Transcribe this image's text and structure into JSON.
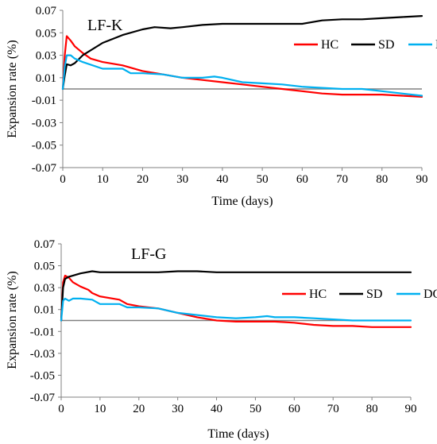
{
  "chart_data": [
    {
      "type": "line",
      "title": "LF-K",
      "xlabel": "Time (days)",
      "ylabel": "Expansion rate (%)",
      "xlim": [
        0,
        90
      ],
      "ylim": [
        -0.07,
        0.07
      ],
      "xticks": [
        0,
        10,
        20,
        30,
        40,
        50,
        60,
        70,
        80,
        90
      ],
      "yticks": [
        -0.07,
        -0.05,
        -0.03,
        -0.01,
        0.01,
        0.03,
        0.05,
        0.07
      ],
      "xtick_labels": [
        "0",
        "10",
        "20",
        "30",
        "40",
        "50",
        "60",
        "70",
        "80",
        "90"
      ],
      "ytick_labels": [
        "-0.07",
        "-0.05",
        "-0.03",
        "-0.01",
        "0.01",
        "0.03",
        "0.05",
        "0.07"
      ],
      "grid": false,
      "legend_position": "top-right",
      "reference_line": {
        "y": 0,
        "color": "#808080"
      },
      "series": [
        {
          "name": "HC",
          "color": "#ff0000",
          "points": [
            [
              0,
              0.0
            ],
            [
              0.5,
              0.03
            ],
            [
              1,
              0.047
            ],
            [
              2,
              0.043
            ],
            [
              3,
              0.038
            ],
            [
              5,
              0.032
            ],
            [
              7,
              0.027
            ],
            [
              10,
              0.024
            ],
            [
              15,
              0.021
            ],
            [
              20,
              0.016
            ],
            [
              25,
              0.013
            ],
            [
              30,
              0.01
            ],
            [
              35,
              0.008
            ],
            [
              40,
              0.006
            ],
            [
              45,
              0.004
            ],
            [
              50,
              0.002
            ],
            [
              55,
              0.0
            ],
            [
              60,
              -0.002
            ],
            [
              65,
              -0.004
            ],
            [
              70,
              -0.005
            ],
            [
              75,
              -0.005
            ],
            [
              80,
              -0.005
            ],
            [
              85,
              -0.006
            ],
            [
              90,
              -0.007
            ]
          ]
        },
        {
          "name": "SD",
          "color": "#000000",
          "points": [
            [
              0,
              0.0
            ],
            [
              0.5,
              0.012
            ],
            [
              1,
              0.022
            ],
            [
              2,
              0.021
            ],
            [
              3,
              0.023
            ],
            [
              5,
              0.03
            ],
            [
              10,
              0.041
            ],
            [
              15,
              0.048
            ],
            [
              20,
              0.053
            ],
            [
              23,
              0.055
            ],
            [
              27,
              0.054
            ],
            [
              30,
              0.055
            ],
            [
              35,
              0.057
            ],
            [
              40,
              0.058
            ],
            [
              45,
              0.058
            ],
            [
              50,
              0.058
            ],
            [
              55,
              0.058
            ],
            [
              60,
              0.058
            ],
            [
              65,
              0.061
            ],
            [
              70,
              0.062
            ],
            [
              75,
              0.062
            ],
            [
              80,
              0.063
            ],
            [
              85,
              0.064
            ],
            [
              90,
              0.065
            ]
          ]
        },
        {
          "name": "DC",
          "color": "#00b0f0",
          "points": [
            [
              0,
              0.0
            ],
            [
              0.5,
              0.02
            ],
            [
              1,
              0.03
            ],
            [
              2,
              0.03
            ],
            [
              3,
              0.027
            ],
            [
              5,
              0.024
            ],
            [
              10,
              0.018
            ],
            [
              15,
              0.018
            ],
            [
              17,
              0.014
            ],
            [
              20,
              0.014
            ],
            [
              25,
              0.013
            ],
            [
              30,
              0.01
            ],
            [
              35,
              0.01
            ],
            [
              38,
              0.011
            ],
            [
              40,
              0.01
            ],
            [
              45,
              0.006
            ],
            [
              50,
              0.005
            ],
            [
              55,
              0.004
            ],
            [
              60,
              0.002
            ],
            [
              65,
              0.001
            ],
            [
              70,
              0.0
            ],
            [
              75,
              0.0
            ],
            [
              80,
              -0.002
            ],
            [
              85,
              -0.004
            ],
            [
              90,
              -0.006
            ]
          ]
        }
      ]
    },
    {
      "type": "line",
      "title": "LF-G",
      "xlabel": "Time (days)",
      "ylabel": "Expansion rate (%)",
      "xlim": [
        0,
        90
      ],
      "ylim": [
        -0.07,
        0.07
      ],
      "xticks": [
        0,
        10,
        20,
        30,
        40,
        50,
        60,
        70,
        80,
        90
      ],
      "yticks": [
        -0.07,
        -0.05,
        -0.03,
        -0.01,
        0.01,
        0.03,
        0.05,
        0.07
      ],
      "xtick_labels": [
        "0",
        "10",
        "20",
        "30",
        "40",
        "50",
        "60",
        "70",
        "80",
        "90"
      ],
      "ytick_labels": [
        "-0.07",
        "-0.05",
        "-0.03",
        "-0.01",
        "0.01",
        "0.03",
        "0.05",
        "0.07"
      ],
      "grid": false,
      "legend_position": "top-right",
      "reference_line": {
        "y": 0,
        "color": "#808080"
      },
      "series": [
        {
          "name": "HC",
          "color": "#ff0000",
          "points": [
            [
              0,
              0.0
            ],
            [
              0.5,
              0.035
            ],
            [
              1,
              0.041
            ],
            [
              2,
              0.039
            ],
            [
              3,
              0.035
            ],
            [
              5,
              0.031
            ],
            [
              7,
              0.028
            ],
            [
              8,
              0.025
            ],
            [
              10,
              0.022
            ],
            [
              15,
              0.019
            ],
            [
              17,
              0.015
            ],
            [
              20,
              0.013
            ],
            [
              25,
              0.011
            ],
            [
              30,
              0.007
            ],
            [
              35,
              0.003
            ],
            [
              40,
              0.0
            ],
            [
              45,
              -0.001
            ],
            [
              50,
              -0.001
            ],
            [
              55,
              -0.001
            ],
            [
              60,
              -0.002
            ],
            [
              65,
              -0.004
            ],
            [
              70,
              -0.005
            ],
            [
              75,
              -0.005
            ],
            [
              80,
              -0.006
            ],
            [
              85,
              -0.006
            ],
            [
              90,
              -0.006
            ]
          ]
        },
        {
          "name": "SD",
          "color": "#000000",
          "points": [
            [
              0,
              0.0
            ],
            [
              0.5,
              0.03
            ],
            [
              1,
              0.038
            ],
            [
              2,
              0.04
            ],
            [
              5,
              0.043
            ],
            [
              8,
              0.045
            ],
            [
              10,
              0.044
            ],
            [
              15,
              0.044
            ],
            [
              20,
              0.044
            ],
            [
              25,
              0.044
            ],
            [
              30,
              0.045
            ],
            [
              35,
              0.045
            ],
            [
              40,
              0.044
            ],
            [
              45,
              0.044
            ],
            [
              50,
              0.044
            ],
            [
              55,
              0.044
            ],
            [
              60,
              0.044
            ],
            [
              65,
              0.044
            ],
            [
              70,
              0.044
            ],
            [
              75,
              0.044
            ],
            [
              80,
              0.044
            ],
            [
              85,
              0.044
            ],
            [
              90,
              0.044
            ]
          ]
        },
        {
          "name": "DC",
          "color": "#00b0f0",
          "points": [
            [
              0,
              0.0
            ],
            [
              0.5,
              0.018
            ],
            [
              1,
              0.02
            ],
            [
              2,
              0.018
            ],
            [
              3,
              0.02
            ],
            [
              5,
              0.02
            ],
            [
              8,
              0.019
            ],
            [
              10,
              0.015
            ],
            [
              15,
              0.015
            ],
            [
              17,
              0.012
            ],
            [
              20,
              0.012
            ],
            [
              25,
              0.011
            ],
            [
              30,
              0.007
            ],
            [
              35,
              0.005
            ],
            [
              40,
              0.003
            ],
            [
              45,
              0.002
            ],
            [
              50,
              0.003
            ],
            [
              53,
              0.004
            ],
            [
              55,
              0.003
            ],
            [
              60,
              0.003
            ],
            [
              65,
              0.002
            ],
            [
              70,
              0.001
            ],
            [
              75,
              0.0
            ],
            [
              80,
              0.0
            ],
            [
              85,
              0.0
            ],
            [
              90,
              0.0
            ]
          ]
        }
      ]
    }
  ]
}
